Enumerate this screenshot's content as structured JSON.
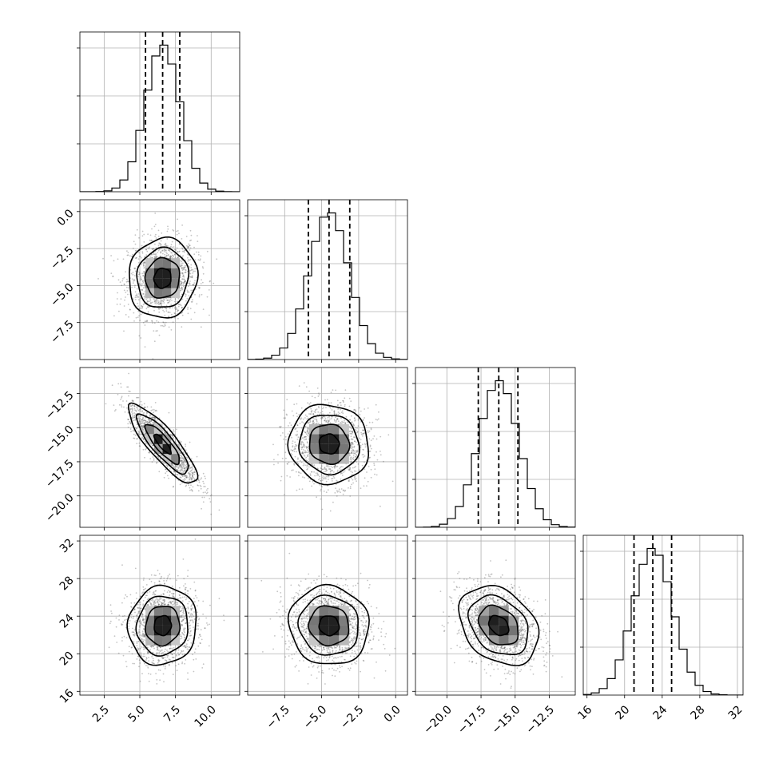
{
  "chart_data": {
    "type": "corner",
    "params": [
      {
        "median": 6.6,
        "sigma": 1.2,
        "range": [
          0.8,
          12.0
        ],
        "ticks": [
          2.5,
          5.0,
          7.5,
          10.0
        ],
        "tick_labels": [
          "2.5",
          "5.0",
          "7.5",
          "10.0"
        ],
        "quantiles": [
          5.4,
          6.6,
          7.8
        ]
      },
      {
        "median": -4.5,
        "sigma": 1.35,
        "range": [
          -10.0,
          0.8
        ],
        "ticks": [
          -7.5,
          -5.0,
          -2.5,
          0.0
        ],
        "tick_labels": [
          "−7.5",
          "−5.0",
          "−2.5",
          "0.0"
        ],
        "quantiles": [
          -5.9,
          -4.5,
          -3.1
        ]
      },
      {
        "median": -16.2,
        "sigma": 1.45,
        "range": [
          -22.3,
          -10.6
        ],
        "ticks": [
          -20.0,
          -17.5,
          -15.0,
          -12.5
        ],
        "tick_labels": [
          "−20.0",
          "−17.5",
          "−15.0",
          "−12.5"
        ],
        "quantiles": [
          -17.7,
          -16.2,
          -14.8
        ]
      },
      {
        "median": 23.0,
        "sigma": 2.1,
        "range": [
          15.6,
          32.6
        ],
        "ticks": [
          16,
          20,
          24,
          28,
          32
        ],
        "tick_labels": [
          "16",
          "20",
          "24",
          "28",
          "32"
        ],
        "quantiles": [
          21.0,
          23.0,
          25.0
        ]
      }
    ],
    "correlations": [
      {
        "i": 1,
        "j": 0,
        "rho": 0.05
      },
      {
        "i": 2,
        "j": 0,
        "rho": -0.85
      },
      {
        "i": 2,
        "j": 1,
        "rho": -0.05
      },
      {
        "i": 3,
        "j": 0,
        "rho": 0.05
      },
      {
        "i": 3,
        "j": 1,
        "rho": -0.05
      },
      {
        "i": 3,
        "j": 2,
        "rho": -0.3
      }
    ],
    "histogram_bins": 20,
    "contour_levels": [
      0.5,
      1.0,
      1.5,
      2.0
    ],
    "grid": true,
    "colors": {
      "points": "#555555",
      "lines": "#000000",
      "grid": "#b0b0b0"
    }
  }
}
